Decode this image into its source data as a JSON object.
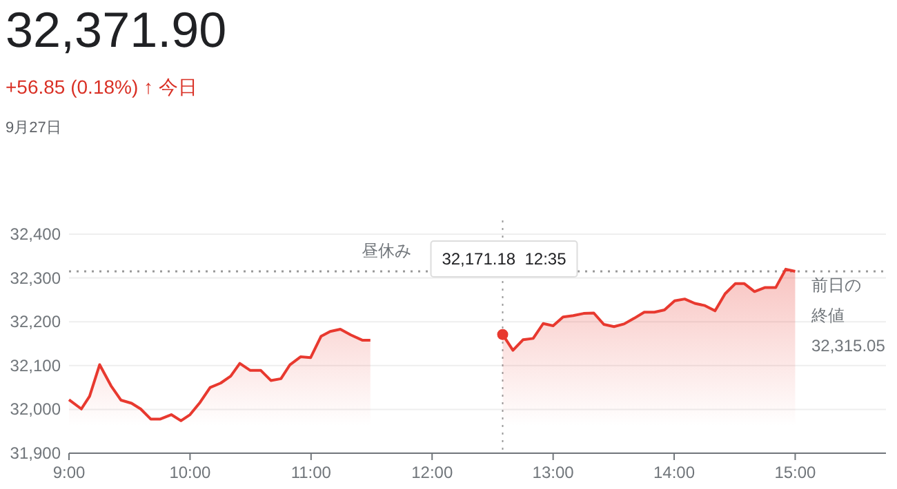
{
  "chart_data": {
    "type": "area",
    "title": "32,371.90",
    "subtitle": "+56.85 (0.18%) ↑ 今日",
    "annotations": [
      "9月27日",
      "昼休み",
      "32,171.18  12:35"
    ],
    "series": [
      {
        "color": "#e8392f",
        "x": [
          9,
          9.102,
          9.17,
          9.253,
          9.347,
          9.43,
          9.517,
          9.592,
          9.675,
          9.755,
          9.845,
          9.925,
          10,
          10.083,
          10.166,
          10.253,
          10.336,
          10.411,
          10.498,
          10.585,
          10.668,
          10.751,
          10.826,
          10.913,
          10.996,
          11.083,
          11.158,
          11.242,
          11.328,
          11.423,
          11.49,
          12,
          12.583,
          12.668,
          12.751,
          12.835,
          12.918,
          13,
          13.082,
          13.166,
          13.252,
          13.336,
          13.419,
          13.503,
          13.586,
          13.67,
          13.753,
          13.837,
          13.92,
          14.004,
          14.087,
          14.171,
          14.254,
          14.338,
          14.421,
          14.505,
          14.58,
          14.664,
          14.748,
          14.839,
          14.922,
          15
        ],
        "values": [
          32022,
          32001,
          32030,
          32102,
          32054,
          32021,
          32014,
          32001,
          31978,
          31978,
          31988,
          31974,
          31988,
          32016,
          32050,
          32060,
          32076,
          32105,
          32089,
          32089,
          32066,
          32070,
          32102,
          32120,
          32118,
          32167,
          32178,
          32183,
          32170,
          32158,
          32158,
          null,
          32171,
          32135,
          32159,
          32162,
          32196,
          32191,
          32211,
          32214,
          32219,
          32220,
          32194,
          32189,
          32195,
          32208,
          32222,
          32222,
          32227,
          32248,
          32252,
          32242,
          32237,
          32225,
          32264,
          32287,
          32287,
          32269,
          32278,
          32278,
          32320,
          32315
        ]
      }
    ],
    "xlim": [
      9,
      15.75
    ],
    "xticks": [
      {
        "value": 9,
        "label": "9:00"
      },
      {
        "value": 10,
        "label": "10:00"
      },
      {
        "value": 11,
        "label": "11:00"
      },
      {
        "value": 12,
        "label": "12:00"
      },
      {
        "value": 13,
        "label": "13:00"
      },
      {
        "value": 14,
        "label": "14:00"
      },
      {
        "value": 15,
        "label": "15:00"
      }
    ],
    "ylim": [
      31900,
      32400
    ],
    "yticks": [
      {
        "value": 31900,
        "label": "31,900"
      },
      {
        "value": 32000,
        "label": "32,000"
      },
      {
        "value": 32100,
        "label": "32,100"
      },
      {
        "value": 32200,
        "label": "32,200"
      },
      {
        "value": 32300,
        "label": "32,300"
      },
      {
        "value": 32400,
        "label": "32,400"
      }
    ],
    "grid": "y",
    "marker": "none",
    "ref_lines": [
      {
        "axis": "y",
        "value": 32315.05,
        "label": "前日の終値\n32,315.05",
        "color": "#999999",
        "line_style": "dotted"
      },
      {
        "axis": "x",
        "value": 12.583,
        "color": "#999999",
        "line_style": "dotted"
      }
    ]
  }
}
